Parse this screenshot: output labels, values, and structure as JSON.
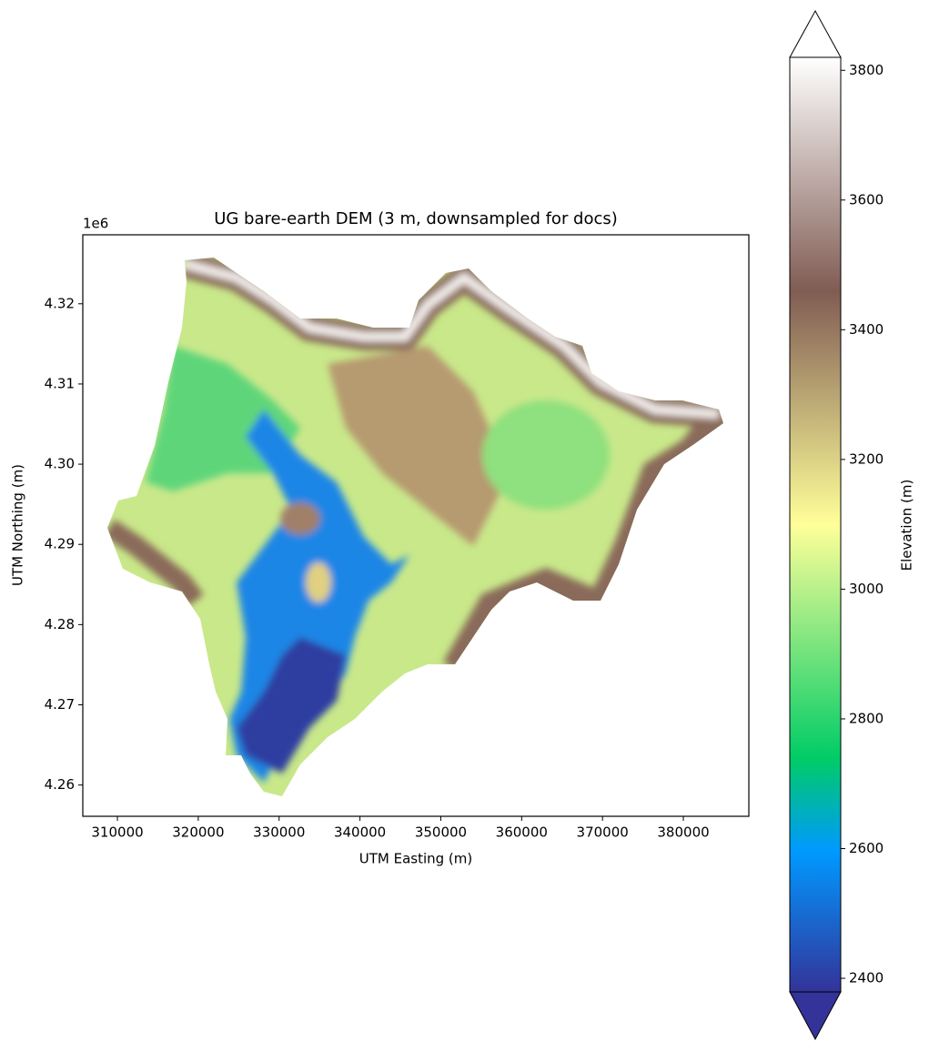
{
  "chart_data": {
    "type": "raster",
    "title": "UG bare-earth DEM (3 m, downsampled for docs)",
    "xlabel": "UTM Easting (m)",
    "ylabel": "UTM Northing (m)",
    "y_offset_text": "1e6",
    "xlim": [
      305720,
      388100
    ],
    "xticks": [
      310000,
      320000,
      330000,
      340000,
      350000,
      360000,
      370000,
      380000
    ],
    "ylim": [
      4.2561,
      4.3286
    ],
    "yticks": [
      4.26,
      4.27,
      4.28,
      4.29,
      {
        "value": 4.3,
        "label": "4.30"
      },
      4.31,
      4.32
    ],
    "colormap": "terrain",
    "colorbar": {
      "label": "Elevation (m)",
      "lim": [
        2379,
        3820
      ],
      "ticks": [
        2400,
        2600,
        2800,
        3000,
        3200,
        3400,
        3600,
        3800
      ],
      "extend": "both"
    }
  }
}
